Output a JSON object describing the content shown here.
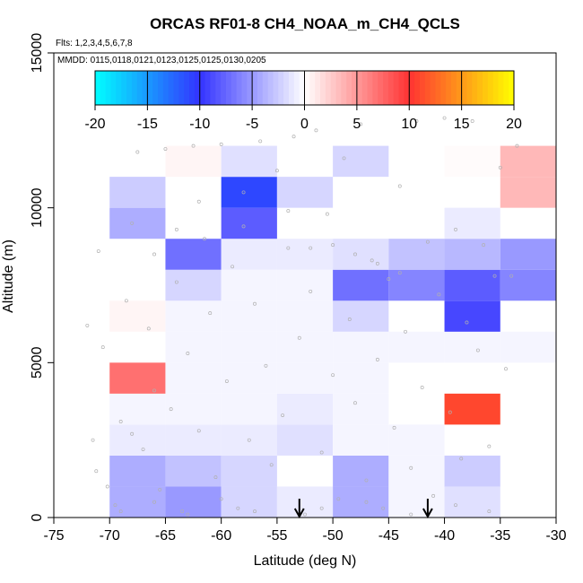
{
  "chart_data": {
    "type": "heatmap",
    "title": "ORCAS RF01-8 CH4_NOAA_m_CH4_QCLS",
    "flights_note": "Flts: 1,2,3,4,5,6,7,8",
    "dates_note": "MMDD: 0115,0118,0121,0123,0125,0125,0130,0205",
    "xlabel": "Latitude (deg N)",
    "ylabel": "Altitude (m)",
    "xlim": [
      -75,
      -30
    ],
    "ylim": [
      0,
      15000
    ],
    "x_ticks": [
      -75,
      -70,
      -65,
      -60,
      -55,
      -50,
      -45,
      -40,
      -35,
      -30
    ],
    "y_ticks": [
      0,
      5000,
      10000,
      15000
    ],
    "colorbar": {
      "range": [
        -20,
        20
      ],
      "ticks": [
        -20,
        -15,
        -10,
        -5,
        0,
        5,
        10,
        15,
        20
      ],
      "colors": [
        "#00ffff",
        "#3333ff",
        "#ffffff",
        "#ff3333",
        "#ffff00"
      ]
    },
    "bin_width_deg": 5,
    "bin_height_m": 1000,
    "cells": [
      {
        "lat": -70,
        "alt": 0,
        "value": -4
      },
      {
        "lat": -65,
        "alt": 0,
        "value": -5
      },
      {
        "lat": -60,
        "alt": 0,
        "value": -2
      },
      {
        "lat": -55,
        "alt": 0,
        "value": -1
      },
      {
        "lat": -50,
        "alt": 0,
        "value": -4
      },
      {
        "lat": -45,
        "alt": 0,
        "value": -0.5
      },
      {
        "lat": -40,
        "alt": 0,
        "value": -1.5
      },
      {
        "lat": -70,
        "alt": 1000,
        "value": -4
      },
      {
        "lat": -65,
        "alt": 1000,
        "value": -3
      },
      {
        "lat": -60,
        "alt": 1000,
        "value": -2
      },
      {
        "lat": -50,
        "alt": 1000,
        "value": -4
      },
      {
        "lat": -45,
        "alt": 1000,
        "value": -0.5
      },
      {
        "lat": -40,
        "alt": 1000,
        "value": -2.5
      },
      {
        "lat": -70,
        "alt": 2000,
        "value": -1
      },
      {
        "lat": -65,
        "alt": 2000,
        "value": -1
      },
      {
        "lat": -60,
        "alt": 2000,
        "value": -1
      },
      {
        "lat": -55,
        "alt": 2000,
        "value": -1.5
      },
      {
        "lat": -50,
        "alt": 2000,
        "value": -0.5
      },
      {
        "lat": -45,
        "alt": 2000,
        "value": -0.5
      },
      {
        "lat": -70,
        "alt": 3000,
        "value": -0.5
      },
      {
        "lat": -65,
        "alt": 3000,
        "value": -0.5
      },
      {
        "lat": -60,
        "alt": 3000,
        "value": -0.5
      },
      {
        "lat": -55,
        "alt": 3000,
        "value": -1
      },
      {
        "lat": -50,
        "alt": 3000,
        "value": -0.5
      },
      {
        "lat": -40,
        "alt": 3000,
        "value": 11
      },
      {
        "lat": -70,
        "alt": 4000,
        "value": 7
      },
      {
        "lat": -65,
        "alt": 4000,
        "value": -0.5
      },
      {
        "lat": -60,
        "alt": 4000,
        "value": -0.5
      },
      {
        "lat": -55,
        "alt": 4000,
        "value": -0.5
      },
      {
        "lat": -50,
        "alt": 4000,
        "value": -0.5
      },
      {
        "lat": -65,
        "alt": 5000,
        "value": -0.5
      },
      {
        "lat": -60,
        "alt": 5000,
        "value": -0.5
      },
      {
        "lat": -55,
        "alt": 5000,
        "value": -0.5
      },
      {
        "lat": -50,
        "alt": 5000,
        "value": -0.5
      },
      {
        "lat": -45,
        "alt": 5000,
        "value": -0.5
      },
      {
        "lat": -40,
        "alt": 5000,
        "value": -0.5
      },
      {
        "lat": -35,
        "alt": 5000,
        "value": -0.5
      },
      {
        "lat": -70,
        "alt": 6000,
        "value": 0.5
      },
      {
        "lat": -65,
        "alt": 6000,
        "value": -0.5
      },
      {
        "lat": -60,
        "alt": 6000,
        "value": -0.5
      },
      {
        "lat": -55,
        "alt": 6000,
        "value": -0.5
      },
      {
        "lat": -50,
        "alt": 6000,
        "value": -2
      },
      {
        "lat": -40,
        "alt": 6000,
        "value": -9
      },
      {
        "lat": -65,
        "alt": 7000,
        "value": -2
      },
      {
        "lat": -60,
        "alt": 7000,
        "value": -0.5
      },
      {
        "lat": -55,
        "alt": 7000,
        "value": -0.5
      },
      {
        "lat": -50,
        "alt": 7000,
        "value": -7
      },
      {
        "lat": -45,
        "alt": 7000,
        "value": -6
      },
      {
        "lat": -40,
        "alt": 7000,
        "value": -8
      },
      {
        "lat": -35,
        "alt": 7000,
        "value": -6
      },
      {
        "lat": -65,
        "alt": 8000,
        "value": -7
      },
      {
        "lat": -60,
        "alt": 8000,
        "value": -1
      },
      {
        "lat": -55,
        "alt": 8000,
        "value": -1
      },
      {
        "lat": -50,
        "alt": 8000,
        "value": -1.5
      },
      {
        "lat": -45,
        "alt": 8000,
        "value": -3
      },
      {
        "lat": -40,
        "alt": 8000,
        "value": -3.5
      },
      {
        "lat": -35,
        "alt": 8000,
        "value": -5
      },
      {
        "lat": -70,
        "alt": 9000,
        "value": -4
      },
      {
        "lat": -60,
        "alt": 9000,
        "value": -8
      },
      {
        "lat": -40,
        "alt": 9000,
        "value": -1
      },
      {
        "lat": -70,
        "alt": 10000,
        "value": -2.5
      },
      {
        "lat": -60,
        "alt": 10000,
        "value": -11
      },
      {
        "lat": -55,
        "alt": 10000,
        "value": -2
      },
      {
        "lat": -35,
        "alt": 10000,
        "value": 3.5
      },
      {
        "lat": -65,
        "alt": 11000,
        "value": 0.5
      },
      {
        "lat": -60,
        "alt": 11000,
        "value": -1.5
      },
      {
        "lat": -50,
        "alt": 11000,
        "value": -2
      },
      {
        "lat": -40,
        "alt": 11000,
        "value": 0.2
      },
      {
        "lat": -35,
        "alt": 11000,
        "value": 3.5
      }
    ],
    "arrows_lat": [
      -53,
      -41.5
    ],
    "observation_points": [
      [
        -71.2,
        1500
      ],
      [
        -71.5,
        2500
      ],
      [
        -72.0,
        6200
      ],
      [
        -71.0,
        8600
      ],
      [
        -70.6,
        5500
      ],
      [
        -70.2,
        1000
      ],
      [
        -69.5,
        400
      ],
      [
        -69.0,
        3100
      ],
      [
        -68.5,
        7000
      ],
      [
        -68.0,
        9500
      ],
      [
        -67.5,
        11800
      ],
      [
        -67.0,
        2200
      ],
      [
        -66.5,
        6100
      ],
      [
        -66.0,
        4100
      ],
      [
        -65.5,
        900
      ],
      [
        -65.0,
        11900
      ],
      [
        -64.5,
        3500
      ],
      [
        -64.0,
        7600
      ],
      [
        -63.5,
        200
      ],
      [
        -63.0,
        5300
      ],
      [
        -62.5,
        12000
      ],
      [
        -62.0,
        2800
      ],
      [
        -61.5,
        9000
      ],
      [
        -61.0,
        6600
      ],
      [
        -60.5,
        1300
      ],
      [
        -60.0,
        12050
      ],
      [
        -59.5,
        4400
      ],
      [
        -59.0,
        8100
      ],
      [
        -58.5,
        300
      ],
      [
        -58.0,
        10500
      ],
      [
        -57.5,
        2500
      ],
      [
        -57.0,
        6900
      ],
      [
        -56.5,
        12150
      ],
      [
        -56.0,
        4900
      ],
      [
        -55.5,
        1700
      ],
      [
        -55.0,
        11200
      ],
      [
        -54.5,
        3300
      ],
      [
        -54.0,
        8700
      ],
      [
        -53.5,
        12300
      ],
      [
        -53.0,
        5800
      ],
      [
        -52.5,
        100
      ],
      [
        -52.0,
        7300
      ],
      [
        -51.5,
        12500
      ],
      [
        -51.0,
        2100
      ],
      [
        -50.5,
        9800
      ],
      [
        -50.0,
        4600
      ],
      [
        -49.5,
        600
      ],
      [
        -49.0,
        11600
      ],
      [
        -48.5,
        6400
      ],
      [
        -48.0,
        3700
      ],
      [
        -47.5,
        12700
      ],
      [
        -47.0,
        1200
      ],
      [
        -46.5,
        8300
      ],
      [
        -46.0,
        5100
      ],
      [
        -45.5,
        300
      ],
      [
        -45.0,
        7700
      ],
      [
        -44.5,
        2900
      ],
      [
        -44.0,
        10700
      ],
      [
        -43.5,
        6000
      ],
      [
        -43.0,
        1600
      ],
      [
        -42.5,
        12800
      ],
      [
        -42.0,
        4200
      ],
      [
        -41.5,
        8900
      ],
      [
        -41.0,
        700
      ],
      [
        -40.5,
        7200
      ],
      [
        -40.0,
        12900
      ],
      [
        -39.5,
        3400
      ],
      [
        -39.0,
        9300
      ],
      [
        -38.5,
        1900
      ],
      [
        -38.0,
        6300
      ],
      [
        -37.5,
        12800
      ],
      [
        -37.0,
        5400
      ],
      [
        -36.5,
        8800
      ],
      [
        -36.0,
        2300
      ],
      [
        -35.5,
        7800
      ],
      [
        -35.0,
        11300
      ],
      [
        -34.5,
        4800
      ],
      [
        -34.0,
        7800
      ],
      [
        -33.5,
        12000
      ],
      [
        -66.0,
        8500
      ],
      [
        -62.0,
        10200
      ],
      [
        -58.0,
        9400
      ],
      [
        -54.0,
        9900
      ],
      [
        -52.0,
        8700
      ],
      [
        -50.0,
        8800
      ],
      [
        -48.0,
        8500
      ],
      [
        -46.0,
        8200
      ],
      [
        -44.0,
        7900
      ],
      [
        -64.0,
        9300
      ],
      [
        -68.0,
        2700
      ],
      [
        -69.0,
        200
      ],
      [
        -66.0,
        500
      ],
      [
        -63.0,
        100
      ],
      [
        -60.0,
        600
      ],
      [
        -57.0,
        200
      ],
      [
        -51.0,
        300
      ],
      [
        -47.0,
        500
      ],
      [
        -43.0,
        100
      ],
      [
        -39.0,
        400
      ],
      [
        -36.0,
        200
      ]
    ]
  }
}
